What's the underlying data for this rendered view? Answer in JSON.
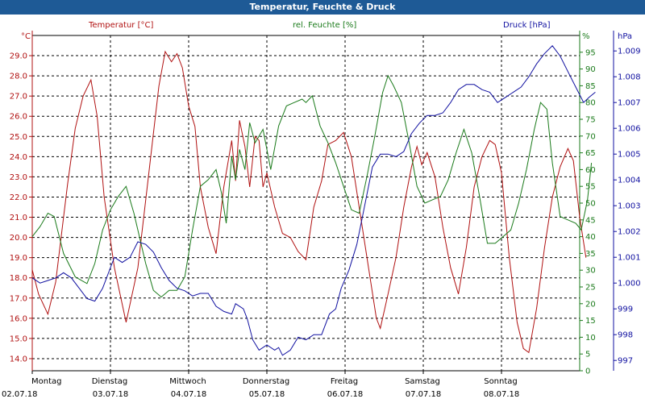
{
  "window": {
    "title": "Temperatur, Feuchte & Druck"
  },
  "colors": {
    "temperature": "#b01010",
    "humidity": "#1a7a1a",
    "pressure": "#1010a0",
    "titlebar": "#1e5a96"
  },
  "chart_data": {
    "type": "line",
    "title": "Temperatur, Feuchte & Druck",
    "grid": true,
    "x_days": [
      {
        "weekday": "Montag",
        "date": "02.07.18"
      },
      {
        "weekday": "Dienstag",
        "date": "03.07.18"
      },
      {
        "weekday": "Mittwoch",
        "date": "04.07.18"
      },
      {
        "weekday": "Donnerstag",
        "date": "05.07.18"
      },
      {
        "weekday": "Freitag",
        "date": "06.07.18"
      },
      {
        "weekday": "Samstag",
        "date": "07.07.18"
      },
      {
        "weekday": "Sonntag",
        "date": "08.07.18"
      }
    ],
    "axes": {
      "temperature": {
        "label": "Temperatur [°C]",
        "unit": "°C",
        "range": [
          13.4,
          30.0
        ],
        "ticks": [
          "14.0",
          "15.0",
          "16.0",
          "17.0",
          "18.0",
          "19.0",
          "20.0",
          "21.0",
          "22.0",
          "23.0",
          "24.0",
          "25.0",
          "26.0",
          "27.0",
          "28.0",
          "29.0"
        ]
      },
      "humidity": {
        "label": "rel. Feuchte [%]",
        "unit": "%",
        "range": [
          0,
          100
        ],
        "ticks": [
          "0",
          "5",
          "10",
          "15",
          "20",
          "25",
          "30",
          "35",
          "40",
          "45",
          "50",
          "55",
          "60",
          "65",
          "70",
          "75",
          "80",
          "85",
          "90",
          "95"
        ]
      },
      "pressure": {
        "label": "Druck [hPa]",
        "unit": "hPa",
        "range": [
          996.6,
          1009.6
        ],
        "ticks": [
          "997",
          "998",
          "999",
          "1.000",
          "1.001",
          "1.002",
          "1.003",
          "1.004",
          "1.005",
          "1.006",
          "1.007",
          "1.008",
          "1.009"
        ]
      }
    },
    "series": [
      {
        "name": "Temperatur [°C]",
        "axis": "temperature",
        "points": [
          [
            0,
            18.4
          ],
          [
            0.08,
            17.2
          ],
          [
            0.2,
            16.2
          ],
          [
            0.3,
            17.8
          ],
          [
            0.45,
            22.6
          ],
          [
            0.55,
            25.4
          ],
          [
            0.65,
            27
          ],
          [
            0.75,
            27.8
          ],
          [
            0.83,
            26
          ],
          [
            0.92,
            22
          ],
          [
            1.05,
            18.5
          ],
          [
            1.2,
            15.8
          ],
          [
            1.35,
            18.5
          ],
          [
            1.5,
            23.5
          ],
          [
            1.62,
            27.5
          ],
          [
            1.7,
            29.2
          ],
          [
            1.78,
            28.7
          ],
          [
            1.85,
            29.1
          ],
          [
            1.92,
            28.4
          ],
          [
            2.0,
            26.5
          ],
          [
            2.08,
            25.5
          ],
          [
            2.15,
            22.5
          ],
          [
            2.25,
            20.5
          ],
          [
            2.35,
            19.2
          ],
          [
            2.45,
            22.5
          ],
          [
            2.55,
            24.8
          ],
          [
            2.6,
            22.8
          ],
          [
            2.65,
            25.8
          ],
          [
            2.72,
            24.5
          ],
          [
            2.78,
            22.5
          ],
          [
            2.85,
            25.0
          ],
          [
            2.9,
            24.8
          ],
          [
            2.95,
            22.5
          ],
          [
            3.0,
            23.2
          ],
          [
            3.1,
            21.5
          ],
          [
            3.2,
            20.2
          ],
          [
            3.3,
            20.0
          ],
          [
            3.4,
            19.3
          ],
          [
            3.5,
            18.9
          ],
          [
            3.6,
            21.5
          ],
          [
            3.7,
            22.8
          ],
          [
            3.78,
            24.6
          ],
          [
            3.88,
            24.8
          ],
          [
            3.98,
            25.2
          ],
          [
            4.08,
            24.0
          ],
          [
            4.18,
            21.5
          ],
          [
            4.3,
            18.5
          ],
          [
            4.4,
            16.0
          ],
          [
            4.45,
            15.5
          ],
          [
            4.55,
            17.2
          ],
          [
            4.65,
            19.0
          ],
          [
            4.75,
            21.5
          ],
          [
            4.85,
            23.5
          ],
          [
            4.92,
            24.5
          ],
          [
            4.98,
            23.6
          ],
          [
            5.05,
            24.2
          ],
          [
            5.15,
            23.0
          ],
          [
            5.25,
            20.5
          ],
          [
            5.35,
            18.5
          ],
          [
            5.45,
            17.2
          ],
          [
            5.55,
            19.5
          ],
          [
            5.65,
            22.5
          ],
          [
            5.75,
            24.0
          ],
          [
            5.85,
            24.8
          ],
          [
            5.92,
            24.6
          ],
          [
            6.0,
            23.2
          ],
          [
            6.1,
            19.0
          ],
          [
            6.2,
            15.8
          ],
          [
            6.28,
            14.5
          ],
          [
            6.35,
            14.3
          ],
          [
            6.45,
            16.5
          ],
          [
            6.55,
            19.5
          ],
          [
            6.65,
            22.0
          ],
          [
            6.75,
            23.5
          ],
          [
            6.85,
            24.4
          ],
          [
            6.92,
            23.8
          ],
          [
            7.0,
            21.0
          ],
          [
            7.08,
            19.0
          ]
        ]
      },
      {
        "name": "rel. Feuchte [%]",
        "axis": "humidity",
        "points": [
          [
            0,
            40
          ],
          [
            0.1,
            43
          ],
          [
            0.2,
            47
          ],
          [
            0.28,
            46
          ],
          [
            0.4,
            35
          ],
          [
            0.55,
            28
          ],
          [
            0.7,
            26
          ],
          [
            0.8,
            32
          ],
          [
            0.9,
            42
          ],
          [
            1.0,
            48
          ],
          [
            1.1,
            52
          ],
          [
            1.2,
            55
          ],
          [
            1.3,
            47
          ],
          [
            1.45,
            32
          ],
          [
            1.55,
            24
          ],
          [
            1.65,
            22
          ],
          [
            1.75,
            24
          ],
          [
            1.85,
            24
          ],
          [
            1.95,
            28
          ],
          [
            2.05,
            42
          ],
          [
            2.15,
            55
          ],
          [
            2.25,
            57
          ],
          [
            2.35,
            60
          ],
          [
            2.42,
            53
          ],
          [
            2.48,
            44
          ],
          [
            2.55,
            64
          ],
          [
            2.6,
            57
          ],
          [
            2.65,
            66
          ],
          [
            2.72,
            60
          ],
          [
            2.78,
            74
          ],
          [
            2.85,
            68
          ],
          [
            2.95,
            72
          ],
          [
            3.05,
            60
          ],
          [
            3.15,
            73
          ],
          [
            3.25,
            79
          ],
          [
            3.35,
            80
          ],
          [
            3.45,
            81
          ],
          [
            3.5,
            80
          ],
          [
            3.58,
            82
          ],
          [
            3.68,
            73
          ],
          [
            3.78,
            68
          ],
          [
            3.88,
            62
          ],
          [
            3.98,
            55
          ],
          [
            4.08,
            48
          ],
          [
            4.18,
            47
          ],
          [
            4.28,
            58
          ],
          [
            4.38,
            70
          ],
          [
            4.48,
            83
          ],
          [
            4.55,
            88
          ],
          [
            4.62,
            85
          ],
          [
            4.72,
            80
          ],
          [
            4.82,
            68
          ],
          [
            4.92,
            55
          ],
          [
            5.02,
            50
          ],
          [
            5.12,
            51
          ],
          [
            5.22,
            52
          ],
          [
            5.32,
            57
          ],
          [
            5.42,
            65
          ],
          [
            5.52,
            72
          ],
          [
            5.62,
            65
          ],
          [
            5.72,
            52
          ],
          [
            5.82,
            38
          ],
          [
            5.92,
            38
          ],
          [
            6.02,
            40
          ],
          [
            6.12,
            42
          ],
          [
            6.22,
            50
          ],
          [
            6.32,
            60
          ],
          [
            6.42,
            72
          ],
          [
            6.5,
            80
          ],
          [
            6.58,
            78
          ],
          [
            6.65,
            62
          ],
          [
            6.75,
            46
          ],
          [
            6.85,
            45
          ],
          [
            6.95,
            44
          ],
          [
            7.02,
            42
          ],
          [
            7.1,
            51
          ],
          [
            7.15,
            62
          ]
        ]
      },
      {
        "name": "Druck [hPa]",
        "axis": "pressure",
        "points": [
          [
            0,
            1000.2
          ],
          [
            0.1,
            1000.0
          ],
          [
            0.2,
            1000.1
          ],
          [
            0.3,
            1000.2
          ],
          [
            0.4,
            1000.4
          ],
          [
            0.5,
            1000.2
          ],
          [
            0.6,
            999.8
          ],
          [
            0.7,
            999.4
          ],
          [
            0.8,
            999.3
          ],
          [
            0.9,
            999.8
          ],
          [
            1.0,
            1000.6
          ],
          [
            1.05,
            1001.0
          ],
          [
            1.15,
            1000.8
          ],
          [
            1.25,
            1001.0
          ],
          [
            1.35,
            1001.6
          ],
          [
            1.45,
            1001.5
          ],
          [
            1.55,
            1001.2
          ],
          [
            1.65,
            1000.6
          ],
          [
            1.75,
            1000.1
          ],
          [
            1.85,
            999.8
          ],
          [
            1.95,
            999.7
          ],
          [
            2.05,
            999.5
          ],
          [
            2.15,
            999.6
          ],
          [
            2.25,
            999.6
          ],
          [
            2.35,
            999.1
          ],
          [
            2.45,
            998.9
          ],
          [
            2.55,
            998.8
          ],
          [
            2.6,
            999.2
          ],
          [
            2.7,
            999.0
          ],
          [
            2.75,
            998.6
          ],
          [
            2.82,
            997.8
          ],
          [
            2.9,
            997.4
          ],
          [
            3.0,
            997.6
          ],
          [
            3.1,
            997.4
          ],
          [
            3.15,
            997.5
          ],
          [
            3.2,
            997.2
          ],
          [
            3.3,
            997.4
          ],
          [
            3.4,
            997.9
          ],
          [
            3.5,
            997.8
          ],
          [
            3.6,
            998.0
          ],
          [
            3.7,
            998.0
          ],
          [
            3.8,
            998.8
          ],
          [
            3.88,
            999.0
          ],
          [
            3.95,
            999.8
          ],
          [
            4.05,
            1000.5
          ],
          [
            4.15,
            1001.5
          ],
          [
            4.25,
            1003.0
          ],
          [
            4.35,
            1004.5
          ],
          [
            4.45,
            1005.0
          ],
          [
            4.55,
            1005.0
          ],
          [
            4.65,
            1004.9
          ],
          [
            4.75,
            1005.1
          ],
          [
            4.85,
            1005.8
          ],
          [
            4.95,
            1006.2
          ],
          [
            5.05,
            1006.5
          ],
          [
            5.15,
            1006.5
          ],
          [
            5.25,
            1006.6
          ],
          [
            5.35,
            1007.0
          ],
          [
            5.45,
            1007.5
          ],
          [
            5.55,
            1007.7
          ],
          [
            5.65,
            1007.7
          ],
          [
            5.75,
            1007.5
          ],
          [
            5.85,
            1007.4
          ],
          [
            5.95,
            1007.0
          ],
          [
            6.05,
            1007.2
          ],
          [
            6.15,
            1007.4
          ],
          [
            6.25,
            1007.6
          ],
          [
            6.35,
            1008.0
          ],
          [
            6.45,
            1008.5
          ],
          [
            6.55,
            1008.9
          ],
          [
            6.65,
            1009.2
          ],
          [
            6.75,
            1008.8
          ],
          [
            6.85,
            1008.2
          ],
          [
            6.95,
            1007.6
          ],
          [
            7.05,
            1007.0
          ],
          [
            7.12,
            1007.2
          ],
          [
            7.2,
            1007.4
          ]
        ]
      }
    ]
  }
}
